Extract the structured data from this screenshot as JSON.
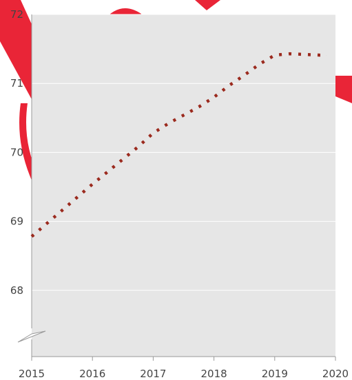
{
  "chart_data": {
    "type": "line",
    "title": "",
    "xlabel": "",
    "ylabel": "",
    "x_ticks": [
      "2015",
      "2016",
      "2017",
      "2018",
      "2019",
      "2020"
    ],
    "y_ticks": [
      "68",
      "69",
      "70",
      "71",
      "72"
    ],
    "xlim": [
      2015,
      2020
    ],
    "ylim": [
      67.04,
      72
    ],
    "y_axis_break": true,
    "grid": "horizontal",
    "legend": "none",
    "series": [
      {
        "color": "#9b2a1e",
        "line_style": "dotted",
        "x": [
          2015.0,
          2015.25,
          2015.5,
          2015.75,
          2016.0,
          2016.25,
          2016.5,
          2016.75,
          2017.0,
          2017.25,
          2017.5,
          2017.75,
          2018.0,
          2018.25,
          2018.5,
          2018.75,
          2019.0,
          2019.25,
          2019.5,
          2019.75,
          2019.85
        ],
        "y": [
          68.78,
          68.97,
          69.16,
          69.35,
          69.54,
          69.72,
          69.9,
          70.08,
          70.28,
          70.42,
          70.54,
          70.66,
          70.8,
          70.97,
          71.12,
          71.28,
          71.41,
          71.43,
          71.42,
          71.41,
          71.41
        ]
      }
    ]
  },
  "colors": {
    "plot_background": "#e6e6e6",
    "gridline": "#ffffff",
    "axis": "#999999",
    "watermark": "#e8192c"
  }
}
